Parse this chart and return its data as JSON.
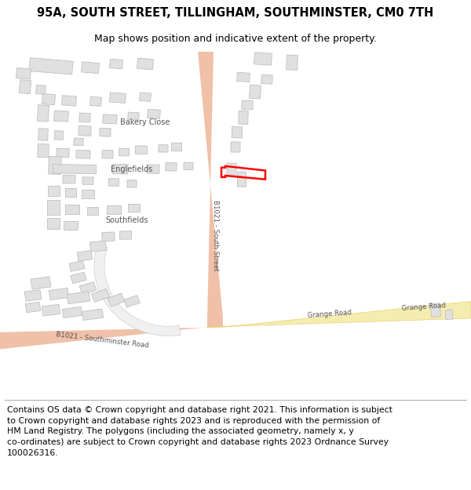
{
  "title": "95A, SOUTH STREET, TILLINGHAM, SOUTHMINSTER, CM0 7TH",
  "subtitle": "Map shows position and indicative extent of the property.",
  "footer_lines": [
    "Contains OS data © Crown copyright and database right 2021. This information is subject to Crown copyright and database rights 2023 and is reproduced with the permission of",
    "HM Land Registry. The polygons (including the associated geometry, namely x, y co-ordinates) are subject to Crown copyright and database rights 2023 Ordnance Survey",
    "100026316."
  ],
  "bg_color": "#ffffff",
  "road_color_main": "#f0c0a8",
  "road_color_secondary": "#f5edb0",
  "building_color": "#e0e0e0",
  "building_edge": "#c0c0c0",
  "highlight_color": "#ff0000",
  "title_fontsize": 10.5,
  "subtitle_fontsize": 9,
  "footer_fontsize": 7.8
}
